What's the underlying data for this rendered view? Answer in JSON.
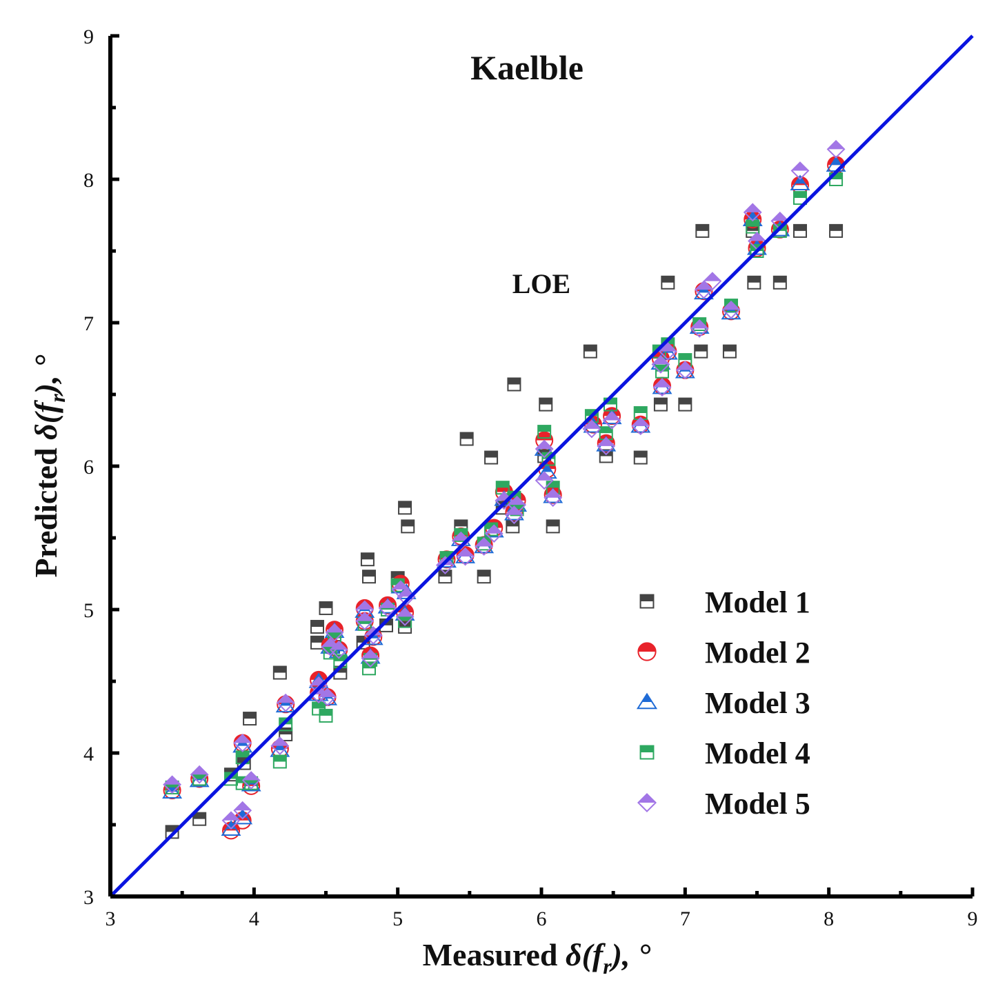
{
  "chart_data": {
    "type": "scatter",
    "title": "Kaelble",
    "annotation": "LOE",
    "xlabel": {
      "prefix": "Measured ",
      "symbol": "δ(f",
      "sub": "r",
      "suffix": "),  °"
    },
    "ylabel": {
      "prefix": "Predicted ",
      "symbol": "δ(f",
      "sub": "r",
      "suffix": "),  °"
    },
    "xlim": [
      3,
      9
    ],
    "ylim": [
      3,
      9
    ],
    "x_ticks": [
      "3",
      "4",
      "5",
      "6",
      "7",
      "8",
      "9"
    ],
    "y_ticks": [
      "3",
      "4",
      "5",
      "6",
      "7",
      "8",
      "9"
    ],
    "reference_line": {
      "name": "y = x",
      "color": "#0a14e0",
      "from": [
        3,
        3
      ],
      "to": [
        9,
        9
      ]
    },
    "legend_position": "bottom-right",
    "series": [
      {
        "name": "Model 1",
        "marker": "square",
        "color": "#444444",
        "points": [
          [
            3.43,
            3.45
          ],
          [
            3.62,
            3.54
          ],
          [
            3.84,
            3.85
          ],
          [
            3.93,
            3.93
          ],
          [
            3.97,
            4.24
          ],
          [
            4.18,
            4.56
          ],
          [
            4.22,
            4.13
          ],
          [
            4.44,
            4.88
          ],
          [
            4.44,
            4.77
          ],
          [
            4.5,
            5.01
          ],
          [
            4.55,
            4.74
          ],
          [
            4.6,
            4.56
          ],
          [
            4.76,
            4.77
          ],
          [
            4.79,
            5.35
          ],
          [
            4.8,
            5.23
          ],
          [
            4.92,
            4.89
          ],
          [
            5.0,
            5.22
          ],
          [
            5.05,
            5.71
          ],
          [
            5.07,
            5.58
          ],
          [
            5.05,
            4.88
          ],
          [
            5.33,
            5.23
          ],
          [
            5.44,
            5.58
          ],
          [
            5.48,
            6.19
          ],
          [
            5.6,
            5.23
          ],
          [
            5.65,
            6.06
          ],
          [
            5.73,
            5.71
          ],
          [
            5.8,
            5.58
          ],
          [
            5.81,
            6.57
          ],
          [
            6.02,
            6.07
          ],
          [
            6.03,
            6.43
          ],
          [
            6.08,
            5.58
          ],
          [
            6.34,
            6.8
          ],
          [
            6.45,
            6.07
          ],
          [
            6.69,
            6.06
          ],
          [
            6.83,
            6.43
          ],
          [
            6.88,
            7.28
          ],
          [
            7.0,
            6.43
          ],
          [
            7.11,
            6.8
          ],
          [
            7.12,
            7.64
          ],
          [
            7.31,
            6.8
          ],
          [
            7.48,
            7.28
          ],
          [
            7.47,
            7.64
          ],
          [
            7.66,
            7.28
          ],
          [
            7.8,
            7.64
          ],
          [
            8.05,
            7.64
          ]
        ]
      },
      {
        "name": "Model 2",
        "marker": "circle",
        "color": "#e8222a",
        "points": [
          [
            3.43,
            3.74
          ],
          [
            3.62,
            3.82
          ],
          [
            3.84,
            3.46
          ],
          [
            3.92,
            3.53
          ],
          [
            3.92,
            4.07
          ],
          [
            3.98,
            3.77
          ],
          [
            4.18,
            4.03
          ],
          [
            4.22,
            4.34
          ],
          [
            4.45,
            4.51
          ],
          [
            4.45,
            4.42
          ],
          [
            4.51,
            4.39
          ],
          [
            4.53,
            4.75
          ],
          [
            4.56,
            4.86
          ],
          [
            4.59,
            4.72
          ],
          [
            4.77,
            5.01
          ],
          [
            4.77,
            4.92
          ],
          [
            4.81,
            4.68
          ],
          [
            4.83,
            4.81
          ],
          [
            4.93,
            5.03
          ],
          [
            5.02,
            5.18
          ],
          [
            5.05,
            4.98
          ],
          [
            5.34,
            5.35
          ],
          [
            5.44,
            5.51
          ],
          [
            5.47,
            5.38
          ],
          [
            5.6,
            5.45
          ],
          [
            5.67,
            5.57
          ],
          [
            5.74,
            5.82
          ],
          [
            5.81,
            5.68
          ],
          [
            5.83,
            5.76
          ],
          [
            6.02,
            6.18
          ],
          [
            6.04,
            5.98
          ],
          [
            6.08,
            5.8
          ],
          [
            6.36,
            6.29
          ],
          [
            6.45,
            6.16
          ],
          [
            6.49,
            6.35
          ],
          [
            6.69,
            6.29
          ],
          [
            6.83,
            6.75
          ],
          [
            6.84,
            6.56
          ],
          [
            6.88,
            6.8
          ],
          [
            7.0,
            6.67
          ],
          [
            7.1,
            6.97
          ],
          [
            7.13,
            7.22
          ],
          [
            7.32,
            7.08
          ],
          [
            7.47,
            7.72
          ],
          [
            7.5,
            7.52
          ],
          [
            7.66,
            7.65
          ],
          [
            7.8,
            7.96
          ],
          [
            8.05,
            8.1
          ]
        ]
      },
      {
        "name": "Model 3",
        "marker": "triangle",
        "color": "#1f6bd6",
        "points": [
          [
            3.43,
            3.73
          ],
          [
            3.62,
            3.81
          ],
          [
            3.84,
            3.47
          ],
          [
            3.92,
            3.55
          ],
          [
            3.92,
            4.05
          ],
          [
            3.98,
            3.78
          ],
          [
            4.18,
            4.02
          ],
          [
            4.22,
            4.33
          ],
          [
            4.45,
            4.5
          ],
          [
            4.45,
            4.41
          ],
          [
            4.51,
            4.38
          ],
          [
            4.53,
            4.74
          ],
          [
            4.56,
            4.85
          ],
          [
            4.59,
            4.71
          ],
          [
            4.77,
            4.99
          ],
          [
            4.77,
            4.9
          ],
          [
            4.81,
            4.67
          ],
          [
            4.83,
            4.8
          ],
          [
            4.93,
            5.02
          ],
          [
            5.02,
            5.16
          ],
          [
            5.06,
            5.12
          ],
          [
            5.05,
            4.97
          ],
          [
            5.34,
            5.34
          ],
          [
            5.44,
            5.49
          ],
          [
            5.47,
            5.37
          ],
          [
            5.6,
            5.44
          ],
          [
            5.67,
            5.55
          ],
          [
            5.74,
            5.77
          ],
          [
            5.81,
            5.67
          ],
          [
            5.83,
            5.73
          ],
          [
            6.02,
            6.12
          ],
          [
            6.04,
            5.96
          ],
          [
            6.08,
            5.79
          ],
          [
            6.36,
            6.28
          ],
          [
            6.45,
            6.15
          ],
          [
            6.49,
            6.34
          ],
          [
            6.69,
            6.28
          ],
          [
            6.83,
            6.72
          ],
          [
            6.84,
            6.55
          ],
          [
            6.88,
            6.79
          ],
          [
            7.0,
            6.66
          ],
          [
            7.1,
            6.97
          ],
          [
            7.13,
            7.21
          ],
          [
            7.32,
            7.07
          ],
          [
            7.47,
            7.72
          ],
          [
            7.5,
            7.52
          ],
          [
            7.66,
            7.65
          ],
          [
            7.8,
            7.97
          ],
          [
            8.05,
            8.1
          ]
        ]
      },
      {
        "name": "Model 4",
        "marker": "square",
        "color": "#2ea860",
        "points": [
          [
            3.43,
            3.76
          ],
          [
            3.62,
            3.82
          ],
          [
            3.84,
            3.82
          ],
          [
            3.92,
            3.79
          ],
          [
            3.92,
            3.97
          ],
          [
            3.98,
            3.79
          ],
          [
            4.18,
            3.94
          ],
          [
            4.22,
            4.2
          ],
          [
            4.45,
            4.31
          ],
          [
            4.5,
            4.26
          ],
          [
            4.53,
            4.7
          ],
          [
            4.56,
            4.8
          ],
          [
            4.6,
            4.64
          ],
          [
            4.77,
            4.9
          ],
          [
            4.8,
            4.59
          ],
          [
            4.81,
            4.65
          ],
          [
            4.93,
            5.0
          ],
          [
            5.0,
            5.17
          ],
          [
            5.05,
            4.92
          ],
          [
            5.34,
            5.36
          ],
          [
            5.44,
            5.52
          ],
          [
            5.6,
            5.46
          ],
          [
            5.65,
            5.56
          ],
          [
            5.73,
            5.85
          ],
          [
            5.81,
            5.78
          ],
          [
            5.83,
            5.7
          ],
          [
            6.02,
            6.24
          ],
          [
            6.05,
            6.05
          ],
          [
            6.08,
            5.85
          ],
          [
            6.35,
            6.35
          ],
          [
            6.45,
            6.23
          ],
          [
            6.48,
            6.43
          ],
          [
            6.69,
            6.37
          ],
          [
            6.82,
            6.8
          ],
          [
            6.84,
            6.66
          ],
          [
            6.88,
            6.85
          ],
          [
            7.0,
            6.74
          ],
          [
            7.1,
            6.99
          ],
          [
            7.32,
            7.12
          ],
          [
            7.47,
            7.67
          ],
          [
            7.5,
            7.5
          ],
          [
            7.66,
            7.64
          ],
          [
            7.8,
            7.87
          ],
          [
            8.05,
            8.0
          ]
        ]
      },
      {
        "name": "Model 5",
        "marker": "diamond",
        "color": "#a276e6",
        "points": [
          [
            3.43,
            3.78
          ],
          [
            3.62,
            3.85
          ],
          [
            3.84,
            3.53
          ],
          [
            3.92,
            3.6
          ],
          [
            3.92,
            4.07
          ],
          [
            3.98,
            3.81
          ],
          [
            4.18,
            4.05
          ],
          [
            4.22,
            4.35
          ],
          [
            4.45,
            4.47
          ],
          [
            4.45,
            4.41
          ],
          [
            4.51,
            4.39
          ],
          [
            4.53,
            4.74
          ],
          [
            4.56,
            4.84
          ],
          [
            4.59,
            4.72
          ],
          [
            4.77,
            5.0
          ],
          [
            4.77,
            4.92
          ],
          [
            4.81,
            4.66
          ],
          [
            4.83,
            4.82
          ],
          [
            4.93,
            5.01
          ],
          [
            5.02,
            5.14
          ],
          [
            5.06,
            5.09
          ],
          [
            5.05,
            4.95
          ],
          [
            5.33,
            5.31
          ],
          [
            5.44,
            5.48
          ],
          [
            5.47,
            5.37
          ],
          [
            5.6,
            5.44
          ],
          [
            5.67,
            5.53
          ],
          [
            5.74,
            5.76
          ],
          [
            5.81,
            5.66
          ],
          [
            5.83,
            5.73
          ],
          [
            6.02,
            6.12
          ],
          [
            6.02,
            5.9
          ],
          [
            6.08,
            5.78
          ],
          [
            6.35,
            6.26
          ],
          [
            6.45,
            6.14
          ],
          [
            6.49,
            6.32
          ],
          [
            6.69,
            6.28
          ],
          [
            6.83,
            6.71
          ],
          [
            6.84,
            6.55
          ],
          [
            6.88,
            6.8
          ],
          [
            7.0,
            6.67
          ],
          [
            7.1,
            6.96
          ],
          [
            7.13,
            7.23
          ],
          [
            7.19,
            7.29
          ],
          [
            7.32,
            7.09
          ],
          [
            7.47,
            7.77
          ],
          [
            7.5,
            7.57
          ],
          [
            7.66,
            7.71
          ],
          [
            7.8,
            8.06
          ],
          [
            8.05,
            8.21
          ]
        ]
      }
    ]
  }
}
